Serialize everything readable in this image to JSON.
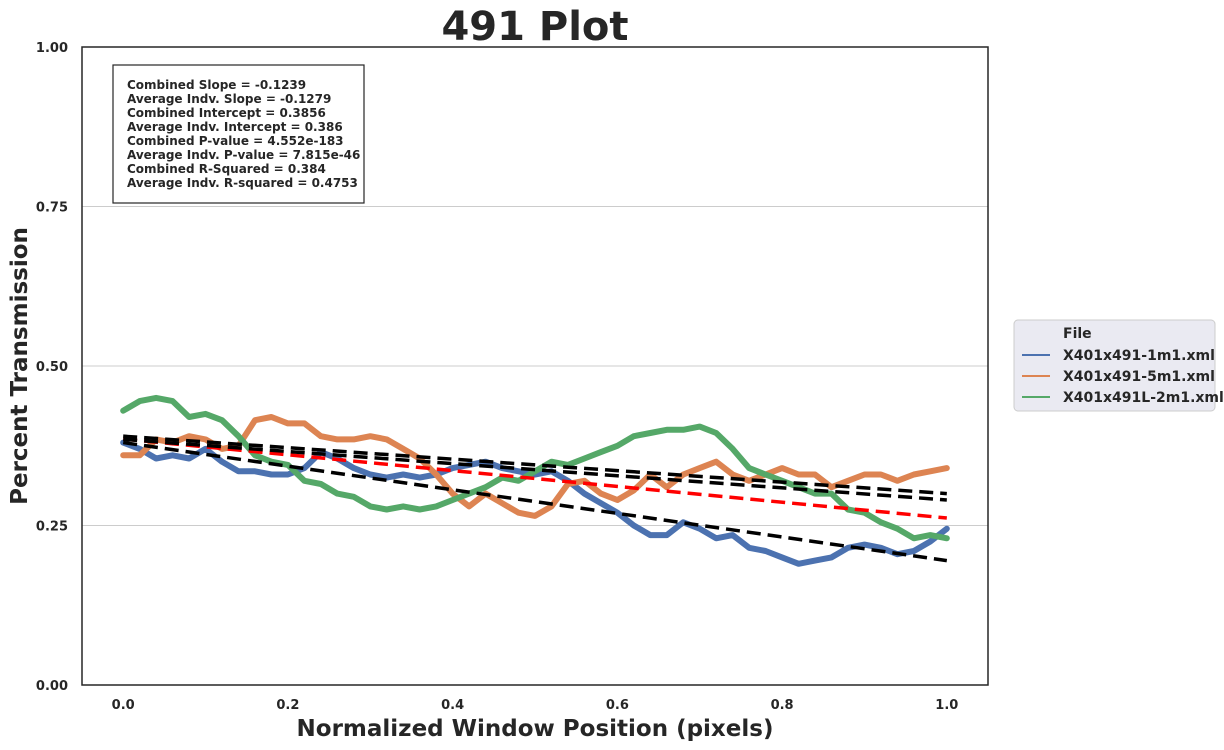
{
  "chart_data": {
    "type": "line",
    "title": "491 Plot",
    "xlabel": "Normalized Window Position (pixels)",
    "ylabel": "Percent Transmission",
    "xlim": [
      -0.05,
      1.05
    ],
    "ylim": [
      0.0,
      1.0
    ],
    "x_ticks": [
      0.0,
      0.2,
      0.4,
      0.6,
      0.8,
      1.0
    ],
    "x_tick_labels": [
      "0.0",
      "0.2",
      "0.4",
      "0.6",
      "0.8",
      "1.0"
    ],
    "y_ticks": [
      0.0,
      0.25,
      0.5,
      0.75,
      1.0
    ],
    "y_tick_labels": [
      "0.00",
      "0.25",
      "0.50",
      "0.75",
      "1.00"
    ],
    "grid": "horizontal",
    "legend": {
      "title": "File",
      "placement": "outside right",
      "entries": [
        "X401x491-1m1.xml",
        "X401x491-5m1.xml",
        "X401x491L-2m1.xml"
      ]
    },
    "stats_box": [
      "Combined Slope = -0.1239",
      "Average Indv. Slope = -0.1279",
      "Combined Intercept = 0.3856",
      "Average Indv. Intercept = 0.386",
      "Combined P-value = 4.552e-183",
      "Average Indv. P-value = 7.815e-46",
      "Combined R-Squared = 0.384",
      "Average Indv. R-squared = 0.4753"
    ],
    "series": [
      {
        "name": "X401x491-1m1.xml",
        "color": "#4c72b0",
        "x": [
          0.0,
          0.02,
          0.04,
          0.06,
          0.08,
          0.1,
          0.12,
          0.14,
          0.16,
          0.18,
          0.2,
          0.22,
          0.24,
          0.26,
          0.28,
          0.3,
          0.32,
          0.34,
          0.36,
          0.38,
          0.4,
          0.42,
          0.44,
          0.46,
          0.48,
          0.5,
          0.52,
          0.54,
          0.56,
          0.58,
          0.6,
          0.62,
          0.64,
          0.66,
          0.68,
          0.7,
          0.72,
          0.74,
          0.76,
          0.78,
          0.8,
          0.82,
          0.84,
          0.86,
          0.88,
          0.9,
          0.92,
          0.94,
          0.96,
          0.98,
          1.0
        ],
        "y": [
          0.38,
          0.37,
          0.355,
          0.36,
          0.355,
          0.37,
          0.35,
          0.335,
          0.335,
          0.33,
          0.33,
          0.34,
          0.365,
          0.355,
          0.34,
          0.33,
          0.325,
          0.33,
          0.325,
          0.33,
          0.34,
          0.345,
          0.35,
          0.34,
          0.335,
          0.33,
          0.335,
          0.32,
          0.3,
          0.285,
          0.27,
          0.25,
          0.235,
          0.235,
          0.255,
          0.245,
          0.23,
          0.235,
          0.215,
          0.21,
          0.2,
          0.19,
          0.195,
          0.2,
          0.215,
          0.22,
          0.215,
          0.205,
          0.21,
          0.225,
          0.245
        ]
      },
      {
        "name": "X401x491-5m1.xml",
        "color": "#dd8452",
        "x": [
          0.0,
          0.02,
          0.04,
          0.06,
          0.08,
          0.1,
          0.12,
          0.14,
          0.16,
          0.18,
          0.2,
          0.22,
          0.24,
          0.26,
          0.28,
          0.3,
          0.32,
          0.34,
          0.36,
          0.38,
          0.4,
          0.42,
          0.44,
          0.46,
          0.48,
          0.5,
          0.52,
          0.54,
          0.56,
          0.58,
          0.6,
          0.62,
          0.64,
          0.66,
          0.68,
          0.7,
          0.72,
          0.74,
          0.76,
          0.78,
          0.8,
          0.82,
          0.84,
          0.86,
          0.88,
          0.9,
          0.92,
          0.94,
          0.96,
          0.98,
          1.0
        ],
        "y": [
          0.36,
          0.36,
          0.385,
          0.38,
          0.39,
          0.385,
          0.37,
          0.375,
          0.415,
          0.42,
          0.41,
          0.41,
          0.39,
          0.385,
          0.385,
          0.39,
          0.385,
          0.37,
          0.355,
          0.33,
          0.3,
          0.28,
          0.3,
          0.285,
          0.27,
          0.265,
          0.28,
          0.315,
          0.32,
          0.3,
          0.29,
          0.305,
          0.33,
          0.31,
          0.33,
          0.34,
          0.35,
          0.33,
          0.32,
          0.33,
          0.34,
          0.33,
          0.33,
          0.31,
          0.32,
          0.33,
          0.33,
          0.32,
          0.33,
          0.335,
          0.34
        ]
      },
      {
        "name": "X401x491L-2m1.xml",
        "color": "#55a868",
        "x": [
          0.0,
          0.02,
          0.04,
          0.06,
          0.08,
          0.1,
          0.12,
          0.14,
          0.16,
          0.18,
          0.2,
          0.22,
          0.24,
          0.26,
          0.28,
          0.3,
          0.32,
          0.34,
          0.36,
          0.38,
          0.4,
          0.42,
          0.44,
          0.46,
          0.48,
          0.5,
          0.52,
          0.54,
          0.56,
          0.58,
          0.6,
          0.62,
          0.64,
          0.66,
          0.68,
          0.7,
          0.72,
          0.74,
          0.76,
          0.78,
          0.8,
          0.82,
          0.84,
          0.86,
          0.88,
          0.9,
          0.92,
          0.94,
          0.96,
          0.98,
          1.0
        ],
        "y": [
          0.43,
          0.445,
          0.45,
          0.445,
          0.42,
          0.425,
          0.415,
          0.39,
          0.36,
          0.35,
          0.345,
          0.32,
          0.315,
          0.3,
          0.295,
          0.28,
          0.275,
          0.28,
          0.275,
          0.28,
          0.29,
          0.3,
          0.31,
          0.325,
          0.32,
          0.335,
          0.35,
          0.345,
          0.355,
          0.365,
          0.375,
          0.39,
          0.395,
          0.4,
          0.4,
          0.405,
          0.395,
          0.37,
          0.34,
          0.33,
          0.32,
          0.31,
          0.3,
          0.3,
          0.275,
          0.27,
          0.255,
          0.245,
          0.23,
          0.235,
          0.23
        ]
      }
    ],
    "fit_lines": [
      {
        "color": "#ff0000",
        "x": [
          0.0,
          1.0
        ],
        "y": [
          0.3856,
          0.2617
        ]
      },
      {
        "color": "#000000",
        "x": [
          0.0,
          1.0
        ],
        "y": [
          0.38,
          0.195
        ]
      },
      {
        "color": "#000000",
        "x": [
          0.0,
          1.0
        ],
        "y": [
          0.385,
          0.29
        ]
      },
      {
        "color": "#000000",
        "x": [
          0.0,
          1.0
        ],
        "y": [
          0.39,
          0.3
        ]
      }
    ]
  }
}
